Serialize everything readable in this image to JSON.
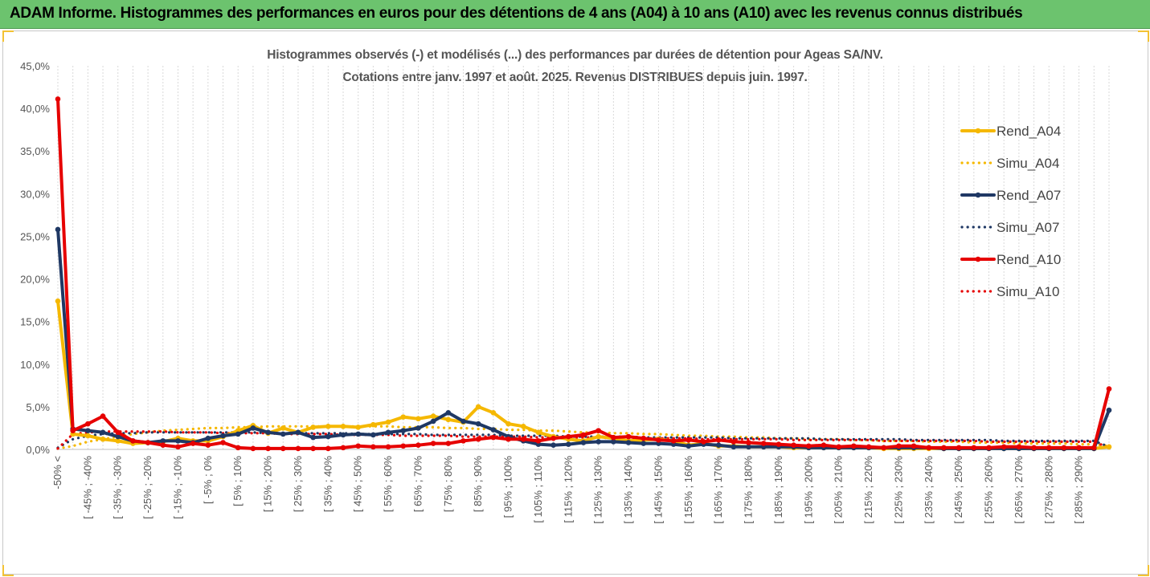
{
  "banner": {
    "title": "ADAM Informe. Histogrammes des performances en euros pour des détentions de 4 ans (A04) à 10 ans (A10) avec les revenus connus distribués"
  },
  "colors": {
    "banner_bg": "#6cc36e",
    "gold": "#f5b800",
    "navy": "#1f3864",
    "red": "#e60000",
    "grid": "#d9d9d9",
    "axis_text": "#555555"
  },
  "chart_data": {
    "type": "line",
    "title_line1": "Histogrammes observés (-) et modélisés (...) des performances par durées de détention pour Ageas SA/NV.",
    "title_line2": "Cotations entre janv. 1997 et août. 2025. Revenus DISTRIBUES depuis juin. 1997.",
    "ylim": [
      0,
      45
    ],
    "yticks": [
      "0,0%",
      "5,0%",
      "10,0%",
      "15,0%",
      "20,0%",
      "25,0%",
      "30,0%",
      "35,0%",
      "40,0%",
      "45,0%"
    ],
    "grid": "vertical",
    "legend_position": "right",
    "category_labels": [
      "-50% <",
      "[ -45% ; -40%",
      "[ -35% ; -30%",
      "[ -25% ; -20%",
      "[ -15% ; -10%",
      "[ -5% ; 0%",
      "[ 5% ; 10%",
      "[ 15% ; 20%",
      "[ 25% ; 30%",
      "[ 35% ; 40%",
      "[ 45% ; 50%",
      "[ 55% ; 60%",
      "[ 65% ; 70%",
      "[ 75% ; 80%",
      "[ 85% ; 90%",
      "[ 95% ; 100%",
      "[ 105% ; 110%",
      "[ 115% ; 120%",
      "[ 125% ; 130%",
      "[ 135% ; 140%",
      "[ 145% ; 150%",
      "[ 155% ; 160%",
      "[ 165% ; 170%",
      "[ 175% ; 180%",
      "[ 185% ; 190%",
      "[ 195% ; 200%",
      "[ 205% ; 210%",
      "[ 215% ; 220%",
      "[ 225% ; 230%",
      "[ 235% ; 240%",
      "[ 245% ; 250%",
      "[ 255% ; 260%",
      "[ 265% ; 270%",
      "[ 275% ; 280%",
      "[ 285% ; 290%"
    ],
    "series": [
      {
        "name": "Rend_A04",
        "color": "#f5b800",
        "style": "solid",
        "values": [
          17.4,
          1.8,
          1.6,
          1.2,
          1.0,
          0.7,
          0.8,
          0.9,
          1.3,
          1.0,
          1.0,
          1.5,
          2.2,
          2.8,
          1.9,
          2.5,
          2.0,
          2.6,
          2.7,
          2.7,
          2.6,
          2.9,
          3.2,
          3.8,
          3.6,
          3.9,
          3.5,
          3.2,
          5.0,
          4.3,
          3.0,
          2.7,
          2.0,
          1.5,
          1.2,
          1.0,
          1.5,
          1.3,
          1.0,
          1.1,
          1.2,
          1.0,
          0.5,
          0.7,
          0.4,
          0.4,
          0.3,
          0.3,
          0.3,
          0.2,
          0.2,
          0.2,
          0.2,
          0.2,
          0.2,
          0.1,
          0.1,
          0.1,
          0.1,
          0.1,
          0.1,
          0.1,
          0.1,
          0.1,
          0.1,
          0.1,
          0.1,
          0.1,
          0.1,
          0.1,
          0.3
        ]
      },
      {
        "name": "Simu_A04",
        "color": "#f5b800",
        "style": "dotted",
        "values": [
          0.1,
          0.4,
          0.9,
          1.2,
          1.5,
          1.8,
          2.0,
          2.2,
          2.3,
          2.4,
          2.5,
          2.5,
          2.6,
          2.6,
          2.7,
          2.7,
          2.7,
          2.7,
          2.7,
          2.7,
          2.7,
          2.7,
          2.7,
          2.6,
          2.6,
          2.6,
          2.5,
          2.5,
          2.4,
          2.4,
          2.3,
          2.3,
          2.2,
          2.2,
          2.1,
          2.0,
          2.0,
          1.9,
          1.9,
          1.8,
          1.8,
          1.7,
          1.6,
          1.6,
          1.5,
          1.5,
          1.4,
          1.4,
          1.3,
          1.3,
          1.2,
          1.2,
          1.2,
          1.1,
          1.1,
          1.0,
          1.0,
          1.0,
          0.9,
          0.9,
          0.9,
          0.8,
          0.8,
          0.8,
          0.7,
          0.7,
          0.7,
          0.7,
          0.6,
          0.6,
          0.4
        ]
      },
      {
        "name": "Rend_A07",
        "color": "#1f3864",
        "style": "solid",
        "values": [
          25.8,
          2.4,
          2.2,
          2.0,
          1.5,
          1.0,
          0.8,
          1.0,
          1.0,
          0.8,
          1.3,
          1.6,
          1.8,
          2.5,
          2.0,
          1.8,
          2.0,
          1.4,
          1.5,
          1.7,
          1.8,
          1.7,
          2.0,
          2.2,
          2.5,
          3.3,
          4.3,
          3.3,
          3.0,
          2.3,
          1.5,
          1.0,
          0.6,
          0.5,
          0.6,
          0.8,
          0.9,
          0.9,
          0.8,
          0.7,
          0.7,
          0.6,
          0.4,
          0.6,
          0.5,
          0.3,
          0.3,
          0.3,
          0.3,
          0.3,
          0.2,
          0.2,
          0.2,
          0.2,
          0.2,
          0.2,
          0.2,
          0.2,
          0.2,
          0.1,
          0.1,
          0.1,
          0.1,
          0.1,
          0.1,
          0.1,
          0.1,
          0.1,
          0.1,
          0.1,
          4.6
        ]
      },
      {
        "name": "Simu_A07",
        "color": "#1f3864",
        "style": "dotted",
        "values": [
          0.2,
          1.2,
          1.6,
          1.8,
          1.9,
          1.9,
          2.0,
          2.0,
          2.0,
          2.0,
          2.0,
          2.0,
          2.0,
          2.0,
          1.9,
          1.9,
          1.9,
          1.9,
          1.9,
          1.9,
          1.8,
          1.8,
          1.8,
          1.8,
          1.8,
          1.7,
          1.7,
          1.7,
          1.7,
          1.7,
          1.6,
          1.6,
          1.6,
          1.6,
          1.5,
          1.5,
          1.5,
          1.5,
          1.5,
          1.4,
          1.4,
          1.4,
          1.4,
          1.4,
          1.4,
          1.3,
          1.3,
          1.3,
          1.3,
          1.3,
          1.3,
          1.2,
          1.2,
          1.2,
          1.2,
          1.2,
          1.2,
          1.1,
          1.1,
          1.1,
          1.1,
          1.1,
          1.1,
          1.0,
          1.0,
          1.0,
          1.0,
          1.0,
          1.0,
          1.0,
          0.3
        ]
      },
      {
        "name": "Rend_A10",
        "color": "#e60000",
        "style": "solid",
        "values": [
          41.1,
          2.2,
          3.0,
          3.9,
          2.0,
          1.0,
          0.8,
          0.5,
          0.3,
          0.7,
          0.5,
          0.8,
          0.2,
          0.1,
          0.1,
          0.1,
          0.1,
          0.1,
          0.1,
          0.2,
          0.4,
          0.3,
          0.3,
          0.4,
          0.5,
          0.7,
          0.7,
          1.0,
          1.2,
          1.4,
          1.2,
          1.2,
          1.0,
          1.3,
          1.5,
          1.7,
          2.2,
          1.4,
          1.5,
          1.3,
          1.1,
          1.0,
          1.1,
          0.9,
          1.1,
          0.9,
          0.8,
          0.7,
          0.6,
          0.5,
          0.4,
          0.5,
          0.3,
          0.4,
          0.3,
          0.2,
          0.4,
          0.4,
          0.2,
          0.2,
          0.2,
          0.2,
          0.2,
          0.3,
          0.3,
          0.2,
          0.2,
          0.2,
          0.2,
          0.2,
          7.1
        ]
      },
      {
        "name": "Simu_A10",
        "color": "#e60000",
        "style": "dotted",
        "values": [
          0.1,
          1.8,
          2.0,
          2.1,
          2.1,
          2.1,
          2.1,
          2.1,
          2.0,
          2.0,
          2.0,
          1.9,
          1.9,
          1.9,
          1.9,
          1.8,
          1.8,
          1.8,
          1.8,
          1.7,
          1.7,
          1.7,
          1.7,
          1.6,
          1.6,
          1.6,
          1.6,
          1.5,
          1.5,
          1.5,
          1.5,
          1.5,
          1.4,
          1.4,
          1.4,
          1.4,
          1.4,
          1.3,
          1.3,
          1.3,
          1.3,
          1.3,
          1.3,
          1.2,
          1.2,
          1.2,
          1.2,
          1.2,
          1.2,
          1.1,
          1.1,
          1.1,
          1.1,
          1.1,
          1.1,
          1.0,
          1.0,
          1.0,
          1.0,
          1.0,
          1.0,
          1.0,
          0.9,
          0.9,
          0.9,
          0.9,
          0.9,
          0.9,
          0.9,
          0.9,
          0.2
        ]
      }
    ]
  }
}
